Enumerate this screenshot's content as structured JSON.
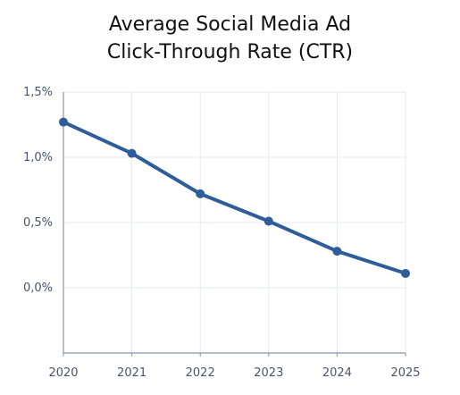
{
  "chart_data": {
    "type": "line",
    "title_lines": [
      "Average Social Media Ad",
      "Click-Through Rate (CTR)"
    ],
    "xlabel": "",
    "ylabel": "",
    "x": [
      "2020",
      "2021",
      "2022",
      "2023",
      "2024",
      "2025"
    ],
    "series": [
      {
        "values": [
          1.27,
          1.03,
          0.72,
          0.51,
          0.28,
          0.11
        ]
      }
    ],
    "yticks": [
      0.0,
      0.5,
      1.0,
      1.5
    ],
    "ytick_labels": [
      "0,0%",
      "0,5%",
      "1,0%",
      "1,5%"
    ],
    "ylim": [
      -0.5,
      1.5
    ],
    "grid": true,
    "line_color": "#2f5d9a",
    "grid_color": "#e6e9ef",
    "axis_color": "#8a94a6"
  }
}
